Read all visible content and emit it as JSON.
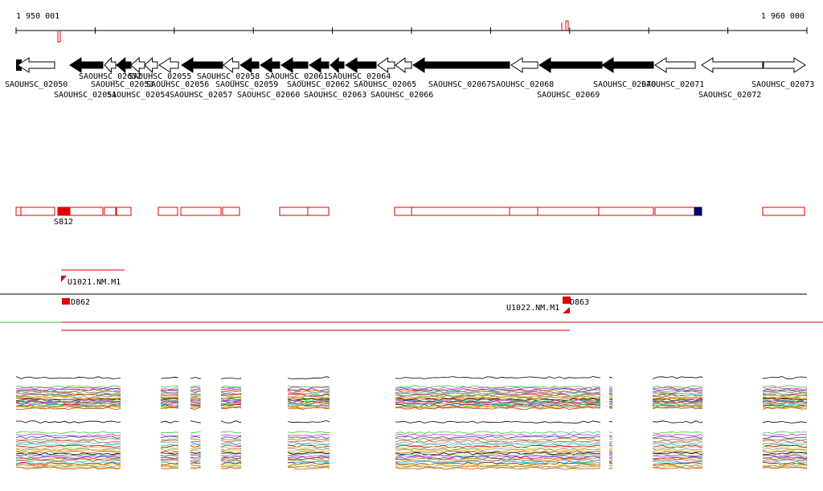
{
  "axis": {
    "start_label": "1 950 001",
    "end_label": "1 960 000"
  },
  "genes": [
    "SAOUHSC_02050",
    "SAOUHSC_02051",
    "SAOUHSC_02052",
    "SAOUHSC_02053",
    "SAOUHSC_02054",
    "SAOUHSC_02055",
    "SAOUHSC_02056",
    "SAOUHSC_02057",
    "SAOUHSC_02058",
    "SAOUHSC_02059",
    "SAOUHSC_02060",
    "SAOUHSC_02061",
    "SAOUHSC_02062",
    "SAOUHSC_02063",
    "SAOUHSC_02064",
    "SAOUHSC_02065",
    "SAOUHSC_02066",
    "SAOUHSC_02067",
    "SAOUHSC_02068",
    "SAOUHSC_02069",
    "SAOUHSC_02070",
    "SAOUHSC_02071",
    "SAOUHSC_02072",
    "SAOUHSC_02073"
  ],
  "segments": {
    "label": "S812"
  },
  "features": [
    {
      "label": "U1021.NM.M1"
    },
    {
      "label": "D862"
    },
    {
      "label": "D863"
    },
    {
      "label": "U1022.NM.M1"
    }
  ]
}
